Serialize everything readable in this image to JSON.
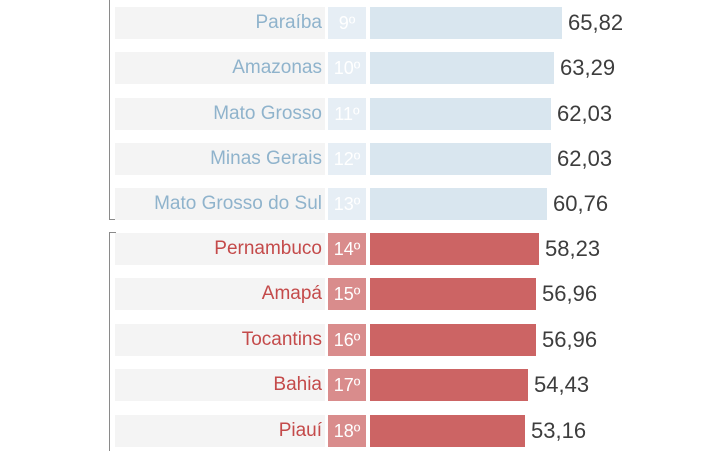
{
  "chart_data": {
    "type": "bar",
    "orientation": "horizontal",
    "groups": [
      {
        "name": "upper",
        "color": "#d9e6ef",
        "items": [
          {
            "label": "Paraíba",
            "rank": "9º",
            "value": 65.82,
            "value_label": "65,82"
          },
          {
            "label": "Amazonas",
            "rank": "10º",
            "value": 63.29,
            "value_label": "63,29"
          },
          {
            "label": "Mato Grosso",
            "rank": "11º",
            "value": 62.03,
            "value_label": "62,03"
          },
          {
            "label": "Minas Gerais",
            "rank": "12º",
            "value": 62.03,
            "value_label": "62,03"
          },
          {
            "label": "Mato Grosso do Sul",
            "rank": "13º",
            "value": 60.76,
            "value_label": "60,76"
          }
        ]
      },
      {
        "name": "lower",
        "color": "#cc6464",
        "items": [
          {
            "label": "Pernambuco",
            "rank": "14º",
            "value": 58.23,
            "value_label": "58,23"
          },
          {
            "label": "Amapá",
            "rank": "15º",
            "value": 56.96,
            "value_label": "56,96"
          },
          {
            "label": "Tocantins",
            "rank": "16º",
            "value": 56.96,
            "value_label": "56,96"
          },
          {
            "label": "Bahia",
            "rank": "17º",
            "value": 54.43,
            "value_label": "54,43"
          },
          {
            "label": "Piauí",
            "rank": "18º",
            "value": 53.16,
            "value_label": "53,16"
          }
        ]
      }
    ]
  }
}
